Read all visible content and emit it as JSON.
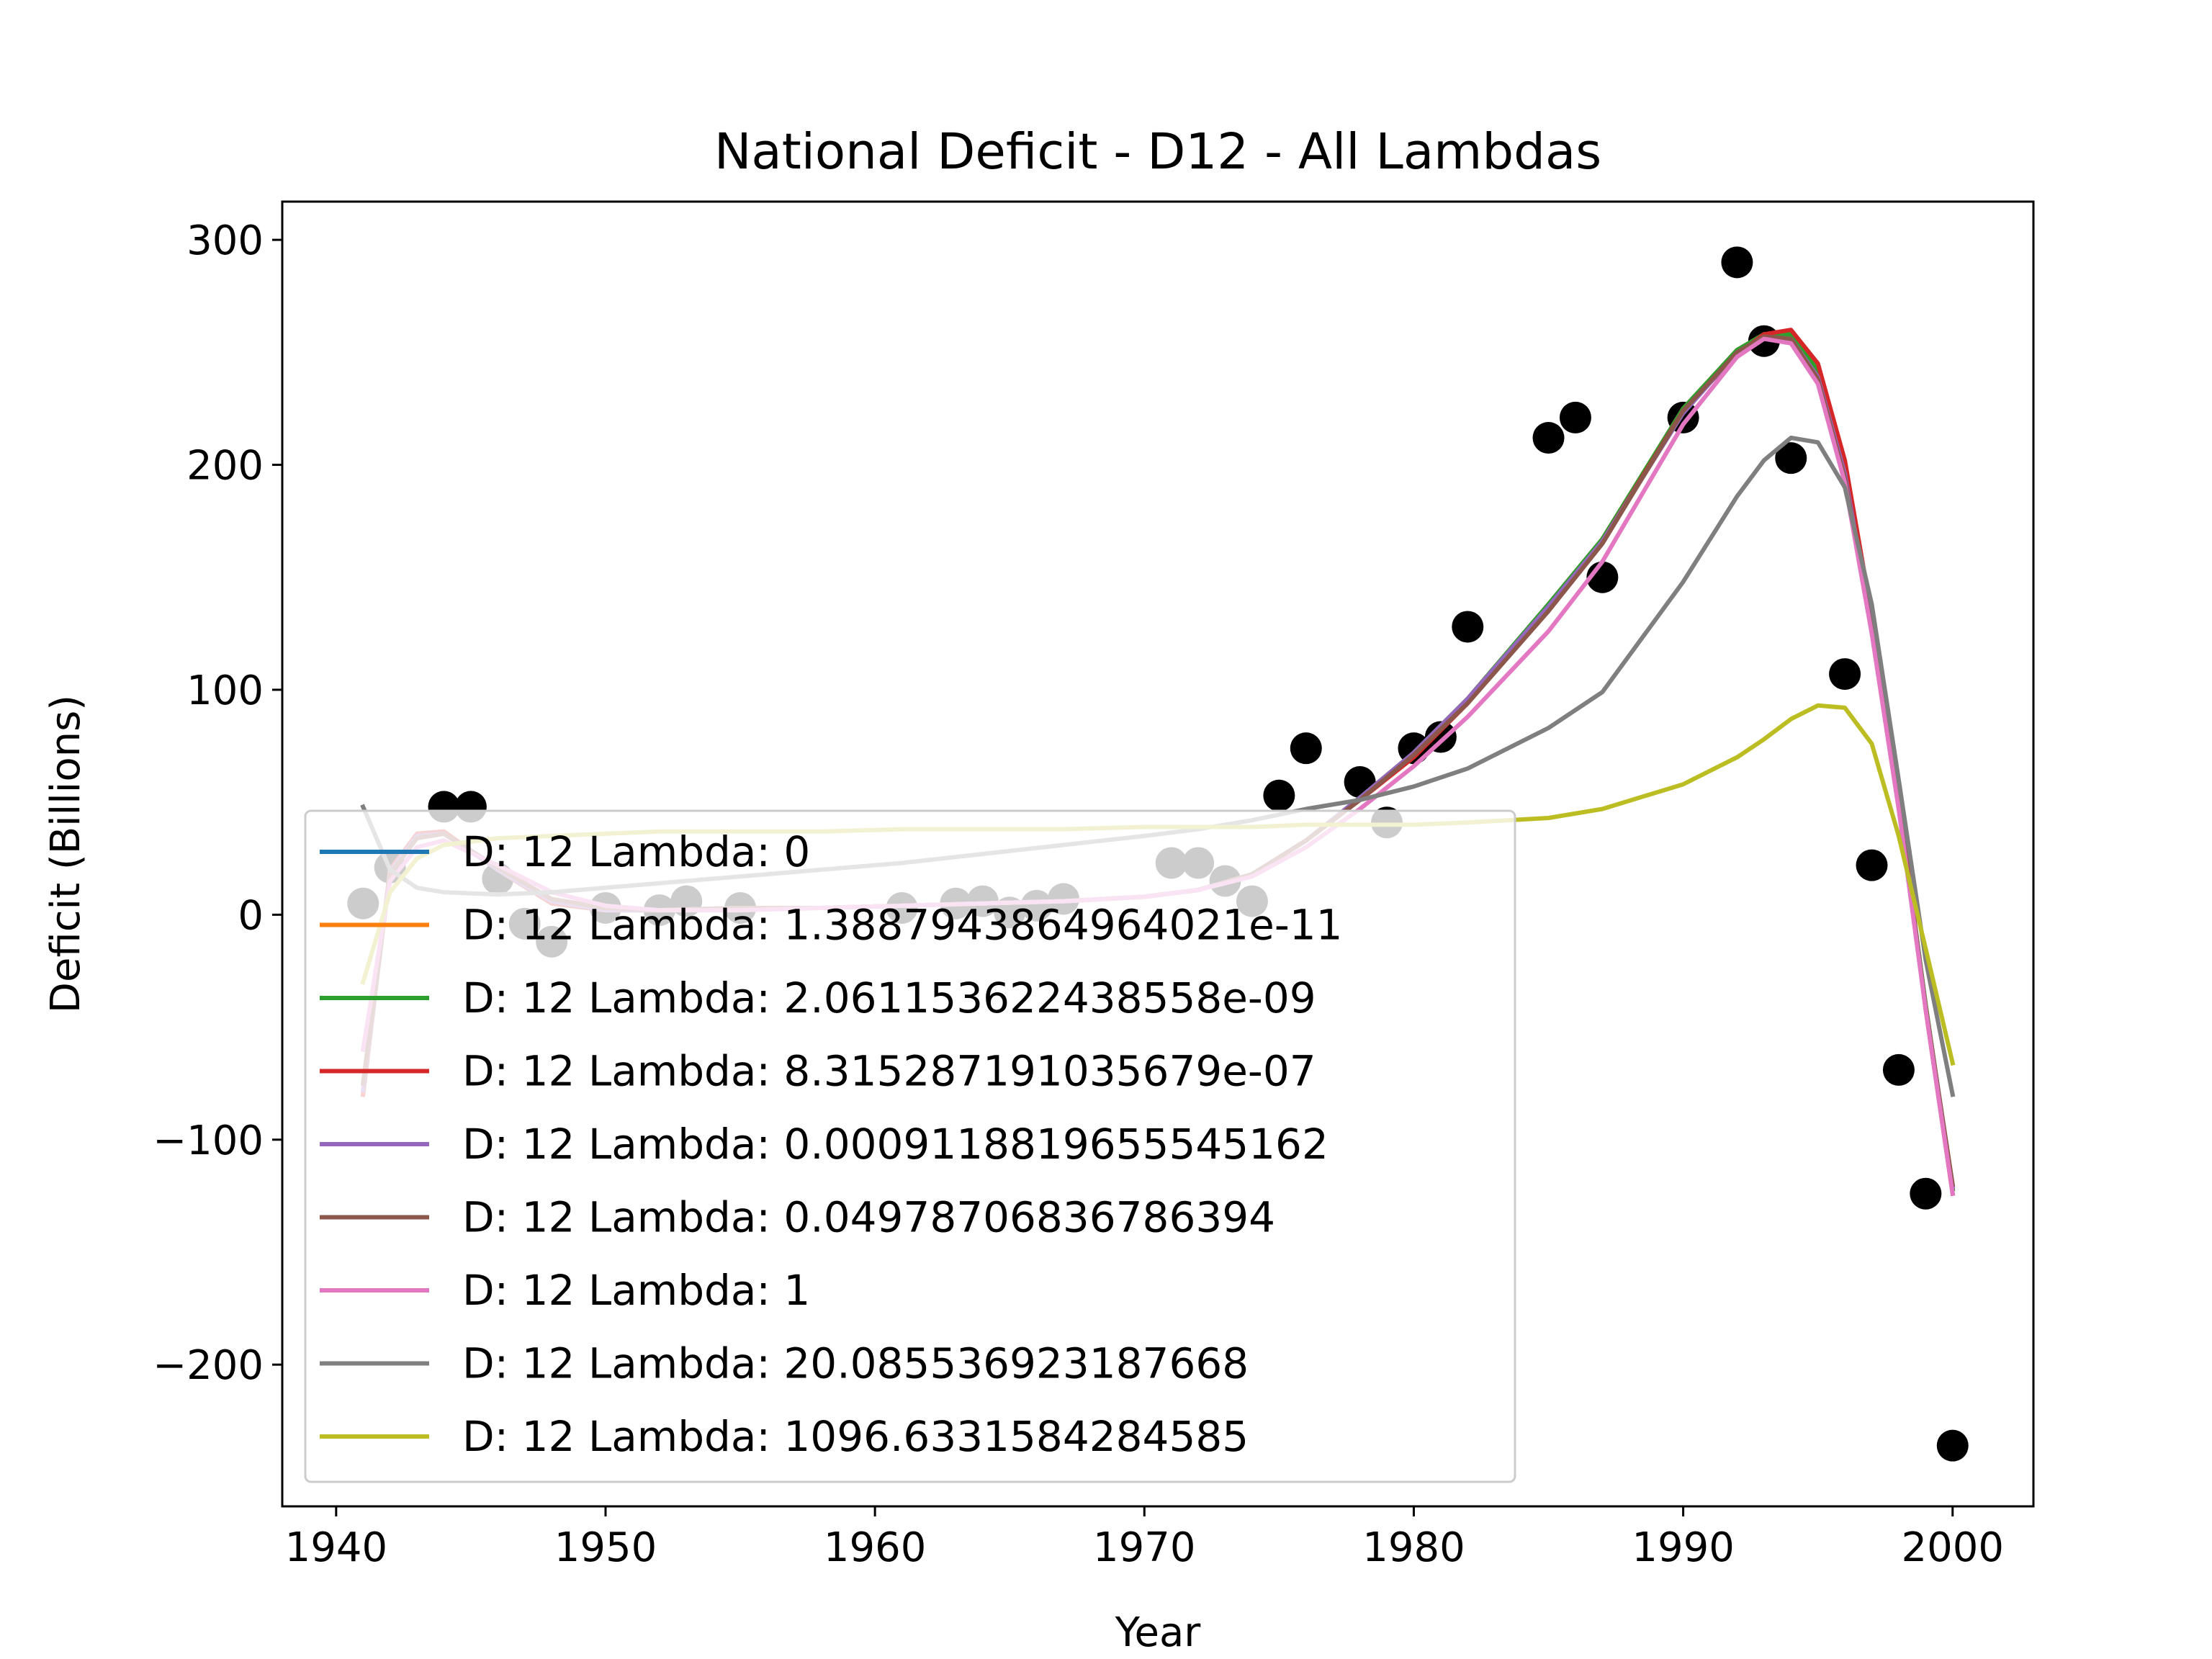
{
  "chart_data": {
    "type": "line",
    "title": "National Deficit - D12 - All Lambdas",
    "xlabel": "Year",
    "ylabel": "Deficit (Billions)",
    "xlim": [
      1938,
      2003
    ],
    "ylim": [
      -263,
      317
    ],
    "x_ticks": [
      1940,
      1950,
      1960,
      1970,
      1980,
      1990,
      2000
    ],
    "x_tick_labels": [
      "1940",
      "1950",
      "1960",
      "1970",
      "1980",
      "1990",
      "2000"
    ],
    "y_ticks": [
      300,
      200,
      100,
      0,
      -100,
      -200
    ],
    "y_tick_labels": [
      "300",
      "200",
      "100",
      "0",
      "−100",
      "−200"
    ],
    "grid": false,
    "legend_position": "lower-left",
    "scatter": {
      "color": "#000000",
      "points": [
        [
          1941,
          5
        ],
        [
          1942,
          21
        ],
        [
          1944,
          48
        ],
        [
          1945,
          48
        ],
        [
          1946,
          16
        ],
        [
          1947,
          -4
        ],
        [
          1948,
          -12
        ],
        [
          1950,
          3
        ],
        [
          1952,
          2
        ],
        [
          1953,
          6
        ],
        [
          1955,
          3
        ],
        [
          1961,
          3
        ],
        [
          1963,
          5
        ],
        [
          1964,
          6
        ],
        [
          1965,
          1
        ],
        [
          1966,
          4
        ],
        [
          1967,
          7
        ],
        [
          1971,
          23
        ],
        [
          1972,
          23
        ],
        [
          1973,
          15
        ],
        [
          1974,
          6
        ],
        [
          1975,
          53
        ],
        [
          1976,
          74
        ],
        [
          1978,
          59
        ],
        [
          1979,
          41
        ],
        [
          1980,
          74
        ],
        [
          1981,
          79
        ],
        [
          1982,
          128
        ],
        [
          1985,
          212
        ],
        [
          1986,
          221
        ],
        [
          1987,
          150
        ],
        [
          1990,
          221
        ],
        [
          1992,
          290
        ],
        [
          1993,
          255
        ],
        [
          1994,
          203
        ],
        [
          1996,
          107
        ],
        [
          1997,
          22
        ],
        [
          1998,
          -69
        ],
        [
          1999,
          -124
        ],
        [
          2000,
          -236
        ]
      ]
    },
    "series": [
      {
        "name": "D: 12 Lambda: 0",
        "color": "#1f77b4",
        "x": [
          1941,
          1942,
          1943,
          1944,
          1946,
          1948,
          1950,
          1952,
          1955,
          1958,
          1961,
          1964,
          1967,
          1970,
          1972,
          1974,
          1976,
          1978,
          1980,
          1982,
          1985,
          1987,
          1990,
          1992,
          1993,
          1994,
          1995,
          1996,
          1997,
          1998,
          1999,
          2000
        ],
        "values": [
          -80,
          20,
          36,
          37,
          20,
          5,
          2,
          2,
          3,
          3,
          4,
          5,
          6,
          8,
          11,
          18,
          33,
          52,
          72,
          96,
          138,
          167,
          225,
          251,
          258,
          258,
          242,
          198,
          130,
          50,
          -40,
          -122
        ]
      },
      {
        "name": "D: 12 Lambda: 1.3887943864964021e-11",
        "color": "#ff7f0e",
        "x": [
          1941,
          1942,
          1943,
          1944,
          1946,
          1948,
          1950,
          1952,
          1955,
          1958,
          1961,
          1964,
          1967,
          1970,
          1972,
          1974,
          1976,
          1978,
          1980,
          1982,
          1985,
          1987,
          1990,
          1992,
          1993,
          1994,
          1995,
          1996,
          1997,
          1998,
          1999,
          2000
        ],
        "values": [
          -80,
          20,
          36,
          37,
          20,
          5,
          2,
          2,
          3,
          3,
          4,
          5,
          6,
          8,
          11,
          18,
          33,
          52,
          72,
          96,
          138,
          167,
          225,
          251,
          258,
          258,
          242,
          198,
          130,
          50,
          -40,
          -122
        ]
      },
      {
        "name": "D: 12 Lambda: 2.061153622438558e-09",
        "color": "#2ca02c",
        "x": [
          1941,
          1942,
          1943,
          1944,
          1946,
          1948,
          1950,
          1952,
          1955,
          1958,
          1961,
          1964,
          1967,
          1970,
          1972,
          1974,
          1976,
          1978,
          1980,
          1982,
          1985,
          1987,
          1990,
          1992,
          1993,
          1994,
          1995,
          1996,
          1997,
          1998,
          1999,
          2000
        ],
        "values": [
          -80,
          20,
          36,
          37,
          20,
          5,
          2,
          2,
          3,
          3,
          4,
          5,
          6,
          8,
          11,
          18,
          33,
          52,
          72,
          96,
          138,
          167,
          225,
          251,
          258,
          258,
          242,
          198,
          130,
          50,
          -40,
          -122
        ]
      },
      {
        "name": "D: 12 Lambda: 8.315287191035679e-07",
        "color": "#d62728",
        "x": [
          1941,
          1942,
          1943,
          1944,
          1946,
          1948,
          1950,
          1952,
          1955,
          1958,
          1961,
          1964,
          1967,
          1970,
          1972,
          1974,
          1976,
          1978,
          1980,
          1982,
          1985,
          1987,
          1990,
          1992,
          1993,
          1994,
          1995,
          1996,
          1997,
          1998,
          1999,
          2000
        ],
        "values": [
          -80,
          20,
          36,
          37,
          20,
          5,
          2,
          2,
          3,
          3,
          4,
          5,
          6,
          8,
          11,
          18,
          33,
          51,
          70,
          94,
          136,
          166,
          224,
          249,
          258,
          260,
          245,
          202,
          133,
          52,
          -42,
          -124
        ]
      },
      {
        "name": "D: 12 Lambda: 0.0009118819655545162",
        "color": "#9467bd",
        "x": [
          1941,
          1942,
          1943,
          1944,
          1946,
          1948,
          1950,
          1952,
          1955,
          1958,
          1961,
          1964,
          1967,
          1970,
          1972,
          1974,
          1976,
          1978,
          1980,
          1982,
          1985,
          1987,
          1990,
          1992,
          1993,
          1994,
          1995,
          1996,
          1997,
          1998,
          1999,
          2000
        ],
        "values": [
          -78,
          19,
          35,
          36,
          20,
          6,
          2,
          2,
          3,
          3,
          4,
          5,
          6,
          8,
          11,
          18,
          33,
          52,
          72,
          96,
          137,
          166,
          223,
          250,
          257,
          256,
          239,
          196,
          128,
          49,
          -41,
          -121
        ]
      },
      {
        "name": "D: 12 Lambda: 0.04978706836786394",
        "color": "#8c564b",
        "x": [
          1941,
          1942,
          1943,
          1944,
          1946,
          1948,
          1950,
          1952,
          1955,
          1958,
          1961,
          1964,
          1967,
          1970,
          1972,
          1974,
          1976,
          1978,
          1980,
          1982,
          1985,
          1987,
          1990,
          1992,
          1993,
          1994,
          1995,
          1996,
          1997,
          1998,
          1999,
          2000
        ],
        "values": [
          -75,
          18,
          34,
          36,
          21,
          7,
          3,
          2,
          3,
          3,
          4,
          5,
          6,
          8,
          11,
          18,
          33,
          51,
          71,
          94,
          135,
          165,
          224,
          250,
          257,
          256,
          238,
          194,
          126,
          48,
          -41,
          -120
        ]
      },
      {
        "name": "D: 12 Lambda: 1",
        "color": "#e377c2",
        "x": [
          1941,
          1942,
          1943,
          1944,
          1946,
          1948,
          1950,
          1952,
          1955,
          1958,
          1961,
          1964,
          1967,
          1970,
          1972,
          1974,
          1976,
          1978,
          1980,
          1982,
          1985,
          1987,
          1990,
          1992,
          1993,
          1994,
          1995,
          1996,
          1997,
          1998,
          1999,
          2000
        ],
        "values": [
          -60,
          15,
          30,
          33,
          22,
          10,
          4,
          2,
          2,
          3,
          4,
          5,
          6,
          8,
          11,
          17,
          30,
          47,
          66,
          88,
          126,
          157,
          218,
          248,
          256,
          254,
          236,
          192,
          125,
          47,
          -42,
          -124
        ]
      },
      {
        "name": "D: 12 Lambda: 20.085536923187668",
        "color": "#7f7f7f",
        "x": [
          1941,
          1942,
          1943,
          1944,
          1946,
          1948,
          1950,
          1952,
          1955,
          1958,
          1961,
          1964,
          1967,
          1970,
          1972,
          1974,
          1976,
          1978,
          1980,
          1982,
          1985,
          1987,
          1990,
          1992,
          1993,
          1994,
          1995,
          1996,
          1997,
          1998,
          1999,
          2000
        ],
        "values": [
          48,
          20,
          12,
          10,
          9,
          10,
          12,
          14,
          17,
          20,
          23,
          27,
          31,
          35,
          38,
          42,
          47,
          51,
          57,
          65,
          83,
          99,
          148,
          186,
          202,
          212,
          210,
          190,
          138,
          60,
          -20,
          -80
        ]
      },
      {
        "name": "D: 12 Lambda: 1096.6331584284585",
        "color": "#bcbd22",
        "x": [
          1941,
          1942,
          1943,
          1944,
          1946,
          1948,
          1950,
          1952,
          1955,
          1958,
          1961,
          1964,
          1967,
          1970,
          1972,
          1974,
          1976,
          1978,
          1980,
          1982,
          1985,
          1987,
          1990,
          1992,
          1993,
          1994,
          1995,
          1996,
          1997,
          1998,
          1999,
          2000
        ],
        "values": [
          -30,
          10,
          25,
          31,
          34,
          35,
          36,
          37,
          37,
          37,
          38,
          38,
          38,
          39,
          39,
          39,
          40,
          40,
          40,
          41,
          43,
          47,
          58,
          70,
          78,
          87,
          93,
          92,
          76,
          35,
          -15,
          -66
        ]
      }
    ]
  }
}
